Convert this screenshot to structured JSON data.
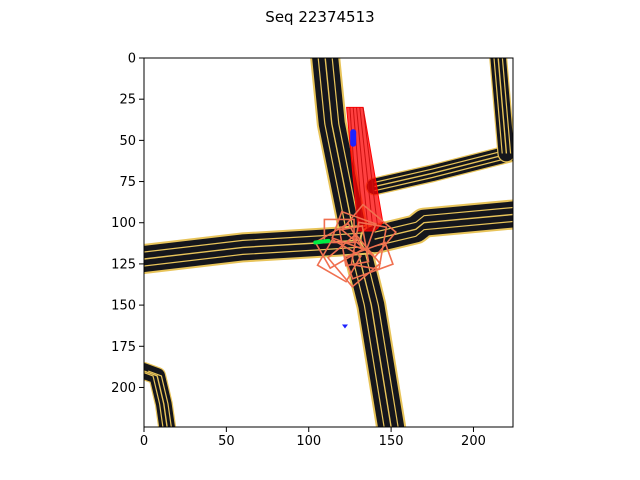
{
  "chart_data": {
    "type": "scatter",
    "title": "Seq 22374513",
    "xlabel": "",
    "ylabel": "",
    "xlim": [
      0,
      224
    ],
    "ylim": [
      224,
      0
    ],
    "y_inverted": true,
    "grid": false,
    "x_ticks": [
      0,
      50,
      100,
      150,
      200
    ],
    "y_ticks": [
      0,
      25,
      50,
      75,
      100,
      125,
      150,
      175,
      200
    ],
    "background": "raster map image with lane centerlines",
    "colors": {
      "lane_fill": "#15161c",
      "lane_border": "#e8c45a",
      "agent_history": "#1e22ff",
      "agent_future": "#ff0000",
      "ego": "#00ee44",
      "candidate_boxes": "#f07050"
    },
    "roads": [
      {
        "name": "vertical road",
        "points": [
          [
            110,
            0
          ],
          [
            114,
            40
          ],
          [
            128,
            110
          ],
          [
            138,
            150
          ],
          [
            150,
            224
          ]
        ]
      },
      {
        "name": "horizontal road west",
        "points": [
          [
            0,
            122
          ],
          [
            60,
            115
          ],
          [
            110,
            112
          ],
          [
            140,
            110
          ]
        ]
      },
      {
        "name": "horizontal road east",
        "points": [
          [
            140,
            110
          ],
          [
            165,
            104
          ],
          [
            170,
            100
          ],
          [
            224,
            95
          ]
        ]
      },
      {
        "name": "upper branch",
        "points": [
          [
            140,
            78
          ],
          [
            175,
            70
          ],
          [
            222,
            58
          ]
        ]
      },
      {
        "name": "right vertical",
        "points": [
          [
            215,
            0
          ],
          [
            220,
            58
          ]
        ]
      },
      {
        "name": "bottom-left curve",
        "points": [
          [
            0,
            190
          ],
          [
            8,
            193
          ],
          [
            12,
            210
          ],
          [
            14,
            224
          ]
        ]
      }
    ],
    "agents": [
      {
        "name": "agent history",
        "points": [
          [
            127,
            45
          ],
          [
            127,
            48
          ],
          [
            127,
            52
          ]
        ]
      },
      {
        "name": "agent near bottom",
        "points": [
          [
            122,
            163
          ]
        ]
      },
      {
        "name": "ego",
        "points": [
          [
            104,
            112
          ],
          [
            112,
            111
          ]
        ]
      }
    ],
    "future_corridor": [
      [
        123,
        30
      ],
      [
        133,
        30
      ],
      [
        145,
        100
      ],
      [
        140,
        105
      ],
      [
        130,
        105
      ]
    ],
    "candidate_region": {
      "x": [
        105,
        150
      ],
      "y": [
        88,
        140
      ]
    }
  }
}
